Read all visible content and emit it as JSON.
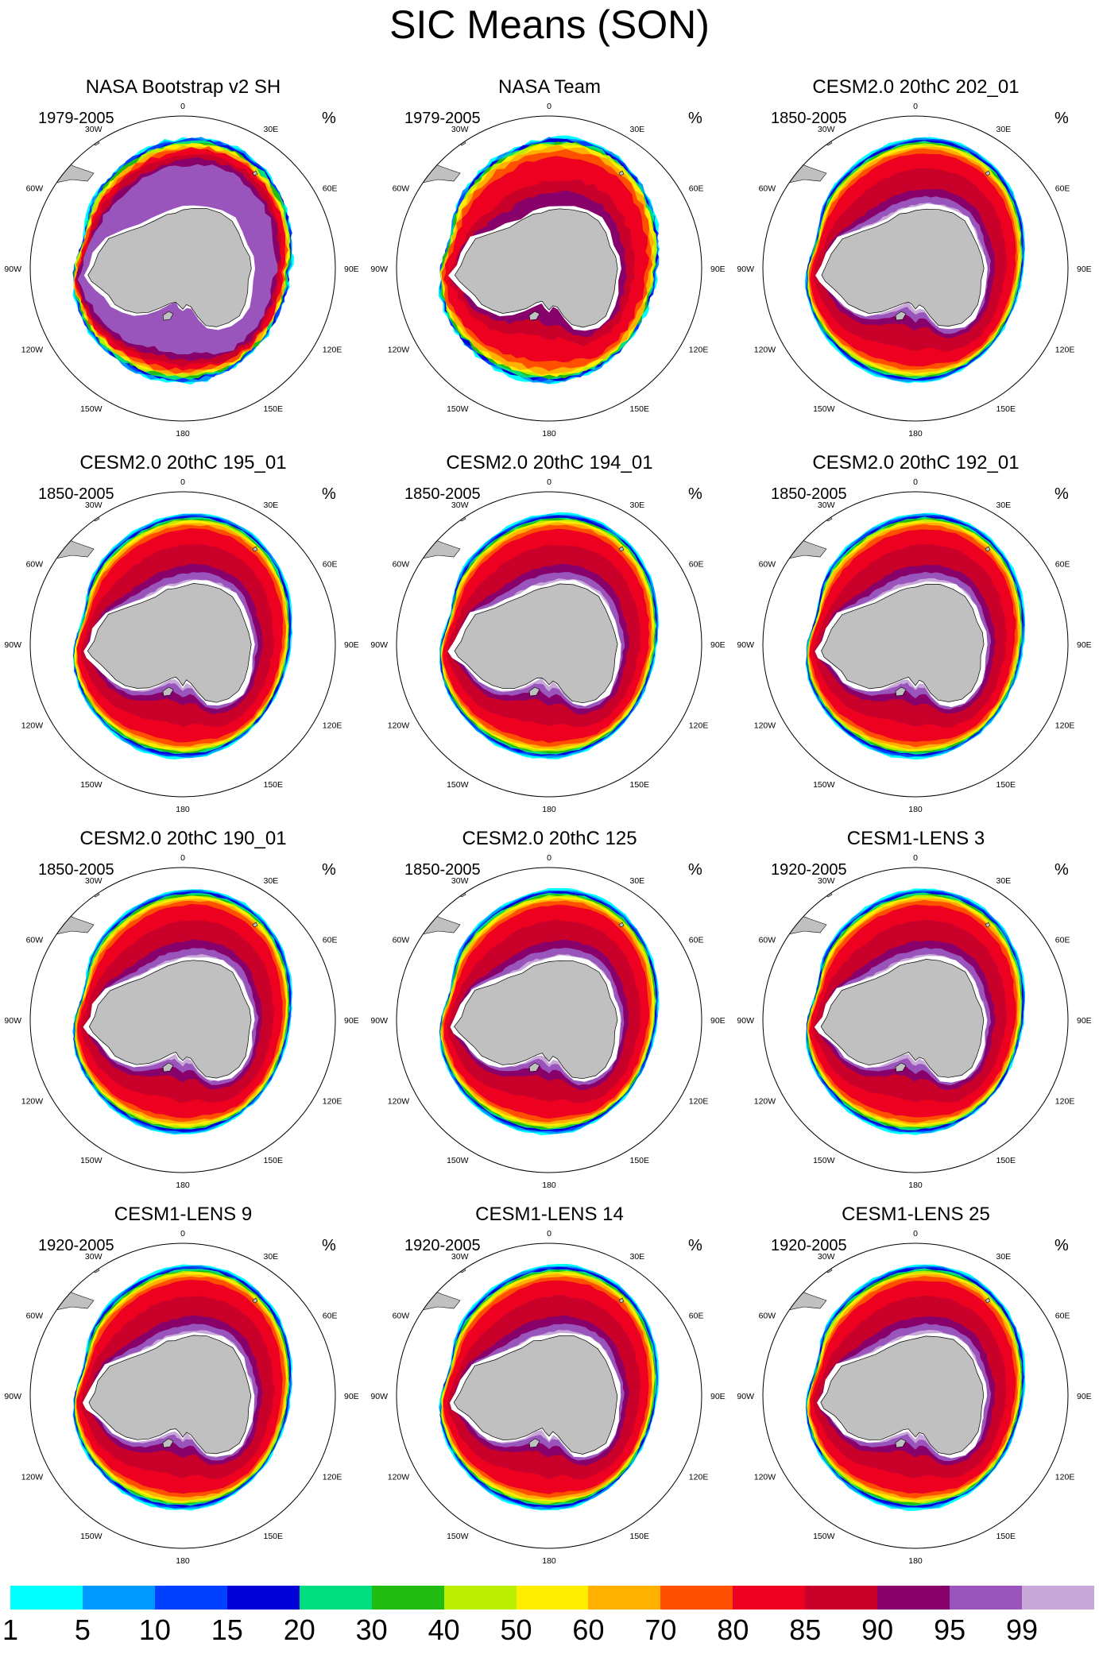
{
  "title": "SIC Means (SON)",
  "units": "%",
  "longitude_labels": [
    "0",
    "30E",
    "60E",
    "90E",
    "120E",
    "150E",
    "180",
    "150W",
    "120W",
    "90W",
    "60W",
    "30W"
  ],
  "panels": [
    {
      "title": "NASA Bootstrap v2 SH",
      "period": "1979-2005"
    },
    {
      "title": "NASA Team",
      "period": "1979-2005"
    },
    {
      "title": "CESM2.0 20thC 202_01",
      "period": "1850-2005"
    },
    {
      "title": "CESM2.0 20thC 195_01",
      "period": "1850-2005"
    },
    {
      "title": "CESM2.0 20thC 194_01",
      "period": "1850-2005"
    },
    {
      "title": "CESM2.0 20thC 192_01",
      "period": "1850-2005"
    },
    {
      "title": "CESM2.0 20thC 190_01",
      "period": "1850-2005"
    },
    {
      "title": "CESM2.0 20thC 125",
      "period": "1850-2005"
    },
    {
      "title": "CESM1-LENS 3",
      "period": "1920-2005"
    },
    {
      "title": "CESM1-LENS 9",
      "period": "1920-2005"
    },
    {
      "title": "CESM1-LENS 14",
      "period": "1920-2005"
    },
    {
      "title": "CESM1-LENS 25",
      "period": "1920-2005"
    }
  ],
  "colorbar": {
    "labels": [
      "1",
      "5",
      "10",
      "15",
      "20",
      "30",
      "40",
      "50",
      "60",
      "70",
      "80",
      "85",
      "90",
      "95",
      "99"
    ],
    "colors": [
      "#00ffff",
      "#0099ff",
      "#0040ff",
      "#0000d8",
      "#00dd80",
      "#22bb11",
      "#bbee00",
      "#ffee00",
      "#ffb000",
      "#ff5000",
      "#ee0020",
      "#c8002a",
      "#88006a",
      "#9955bb",
      "#c8a8d8"
    ]
  },
  "land_color": "#c0c0c0"
}
